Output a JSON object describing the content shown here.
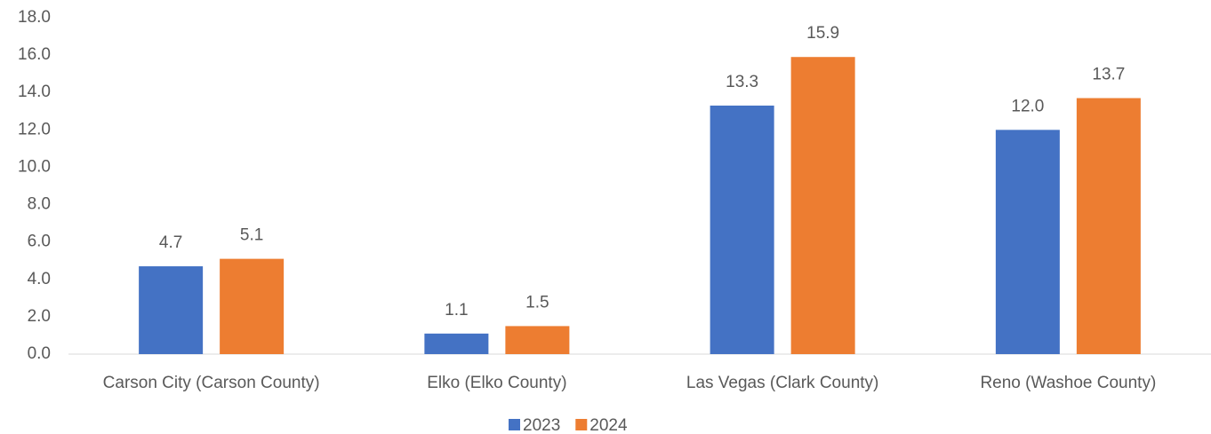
{
  "chart_data": {
    "type": "bar",
    "categories": [
      "Carson City (Carson County)",
      "Elko (Elko County)",
      "Las Vegas (Clark County)",
      "Reno (Washoe County)"
    ],
    "series": [
      {
        "name": "2023",
        "color": "#4472c4",
        "values": [
          4.7,
          1.1,
          13.3,
          12.0
        ],
        "value_labels": [
          "4.7",
          "1.1",
          "13.3",
          "12.0"
        ]
      },
      {
        "name": "2024",
        "color": "#ed7d31",
        "values": [
          5.1,
          1.5,
          15.9,
          13.7
        ],
        "value_labels": [
          "5.1",
          "1.5",
          "15.9",
          "13.7"
        ]
      }
    ],
    "ylim": [
      0,
      18
    ],
    "yticks": [
      {
        "value": 0,
        "label": "0.0"
      },
      {
        "value": 2,
        "label": "2.0"
      },
      {
        "value": 4,
        "label": "4.0"
      },
      {
        "value": 6,
        "label": "6.0"
      },
      {
        "value": 8,
        "label": "8.0"
      },
      {
        "value": 10,
        "label": "10.0"
      },
      {
        "value": 12,
        "label": "12.0"
      },
      {
        "value": 14,
        "label": "14.0"
      },
      {
        "value": 16,
        "label": "16.0"
      },
      {
        "value": 18,
        "label": "18.0"
      }
    ],
    "grid": false,
    "legend": "bottom"
  }
}
